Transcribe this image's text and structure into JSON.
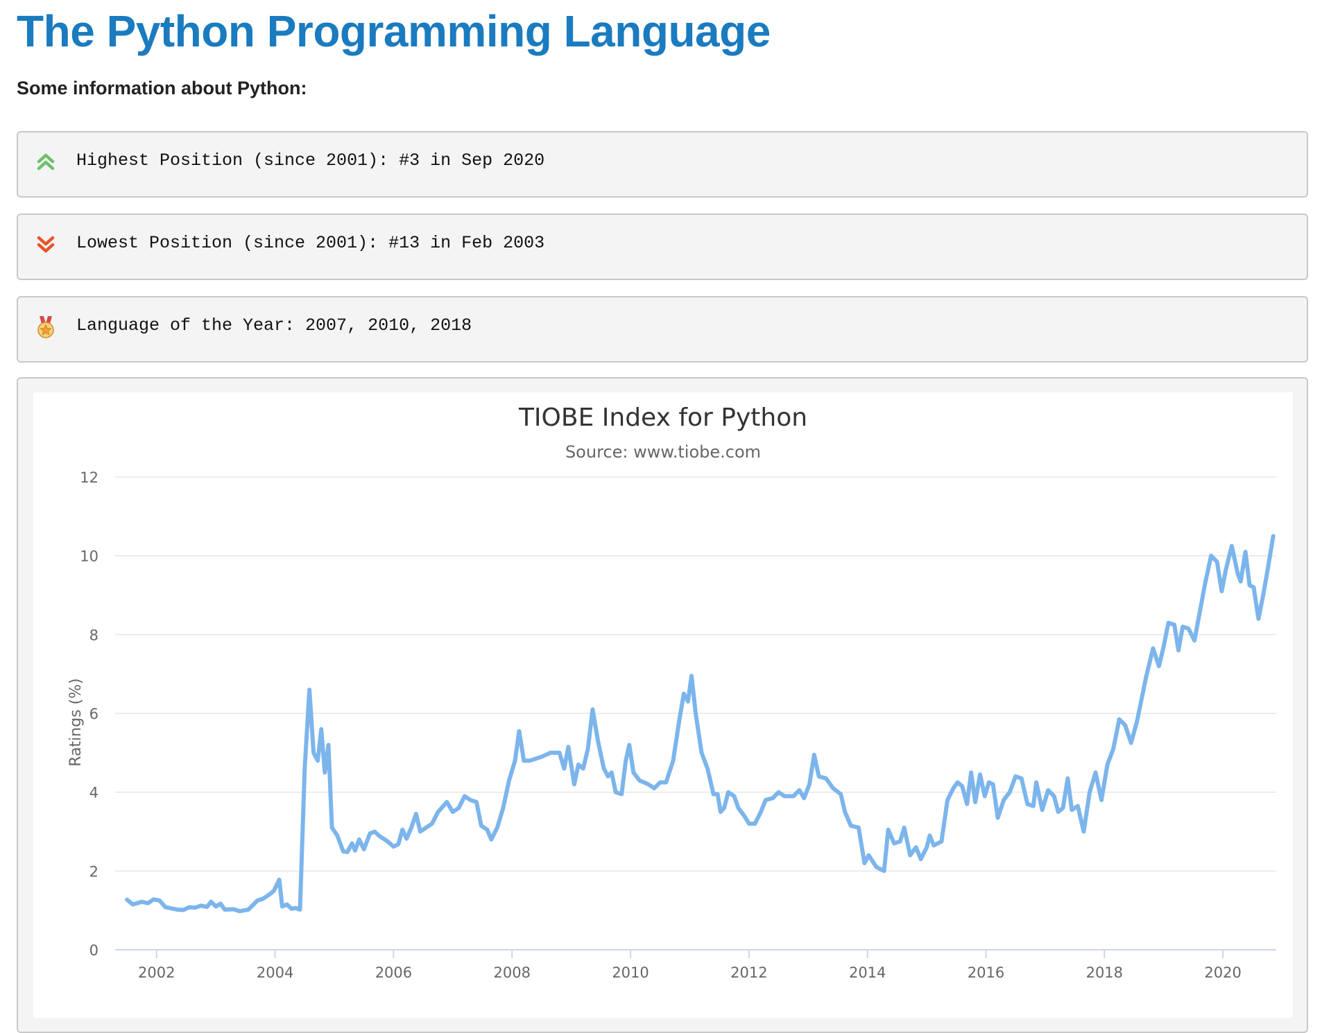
{
  "page": {
    "title": "The Python Programming Language",
    "subtitle": "Some information about Python:"
  },
  "info": [
    {
      "icon": "double-chevron-up-icon",
      "text": "Highest Position (since 2001): #3 in Sep 2020",
      "color": "#6cc06a"
    },
    {
      "icon": "double-chevron-down-icon",
      "text": "Lowest Position (since 2001): #13 in Feb 2003",
      "color": "#e8532a"
    },
    {
      "icon": "medal-star-icon",
      "text": "Language of the Year: 2007, 2010, 2018",
      "color": "#f0a030"
    }
  ],
  "colors": {
    "title": "#1a7bbf",
    "line": "#7cb5ec",
    "grid": "#e6e6e6"
  },
  "chart_data": {
    "type": "line",
    "title": "TIOBE Index for Python",
    "subtitle": "Source: www.tiobe.com",
    "xlabel": "",
    "ylabel": "Ratings (%)",
    "xlim": [
      2001.3,
      2020.9
    ],
    "ylim": [
      0,
      12
    ],
    "x_ticks": [
      "2002",
      "2004",
      "2006",
      "2008",
      "2010",
      "2012",
      "2014",
      "2016",
      "2018",
      "2020"
    ],
    "y_ticks": [
      "0",
      "2",
      "4",
      "6",
      "8",
      "10",
      "12"
    ],
    "grid": true,
    "legend": "none",
    "series": [
      {
        "name": "Python",
        "points": [
          [
            2001.5,
            1.27
          ],
          [
            2001.6,
            1.15
          ],
          [
            2001.75,
            1.22
          ],
          [
            2001.85,
            1.18
          ],
          [
            2001.95,
            1.28
          ],
          [
            2002.05,
            1.25
          ],
          [
            2002.15,
            1.08
          ],
          [
            2002.35,
            1.02
          ],
          [
            2002.45,
            1.01
          ],
          [
            2002.55,
            1.08
          ],
          [
            2002.65,
            1.07
          ],
          [
            2002.75,
            1.12
          ],
          [
            2002.85,
            1.09
          ],
          [
            2002.92,
            1.22
          ],
          [
            2003.0,
            1.1
          ],
          [
            2003.08,
            1.17
          ],
          [
            2003.15,
            1.02
          ],
          [
            2003.3,
            1.03
          ],
          [
            2003.4,
            0.98
          ],
          [
            2003.55,
            1.02
          ],
          [
            2003.7,
            1.25
          ],
          [
            2003.8,
            1.3
          ],
          [
            2003.9,
            1.4
          ],
          [
            2003.98,
            1.5
          ],
          [
            2004.07,
            1.78
          ],
          [
            2004.12,
            1.1
          ],
          [
            2004.2,
            1.15
          ],
          [
            2004.28,
            1.04
          ],
          [
            2004.35,
            1.06
          ],
          [
            2004.42,
            1.02
          ],
          [
            2004.5,
            4.6
          ],
          [
            2004.58,
            6.6
          ],
          [
            2004.65,
            5.0
          ],
          [
            2004.72,
            4.8
          ],
          [
            2004.78,
            5.6
          ],
          [
            2004.84,
            4.5
          ],
          [
            2004.9,
            5.2
          ],
          [
            2004.96,
            3.1
          ],
          [
            2005.05,
            2.9
          ],
          [
            2005.15,
            2.5
          ],
          [
            2005.22,
            2.48
          ],
          [
            2005.3,
            2.7
          ],
          [
            2005.35,
            2.52
          ],
          [
            2005.42,
            2.8
          ],
          [
            2005.5,
            2.55
          ],
          [
            2005.6,
            2.95
          ],
          [
            2005.68,
            3.0
          ],
          [
            2005.75,
            2.9
          ],
          [
            2005.9,
            2.75
          ],
          [
            2006.0,
            2.62
          ],
          [
            2006.08,
            2.68
          ],
          [
            2006.15,
            3.05
          ],
          [
            2006.22,
            2.82
          ],
          [
            2006.3,
            3.1
          ],
          [
            2006.38,
            3.45
          ],
          [
            2006.45,
            3.0
          ],
          [
            2006.55,
            3.1
          ],
          [
            2006.65,
            3.2
          ],
          [
            2006.75,
            3.5
          ],
          [
            2006.9,
            3.75
          ],
          [
            2007.0,
            3.5
          ],
          [
            2007.1,
            3.6
          ],
          [
            2007.2,
            3.9
          ],
          [
            2007.3,
            3.8
          ],
          [
            2007.4,
            3.75
          ],
          [
            2007.48,
            3.15
          ],
          [
            2007.58,
            3.05
          ],
          [
            2007.65,
            2.8
          ],
          [
            2007.75,
            3.1
          ],
          [
            2007.85,
            3.6
          ],
          [
            2007.95,
            4.3
          ],
          [
            2008.05,
            4.8
          ],
          [
            2008.12,
            5.55
          ],
          [
            2008.2,
            4.8
          ],
          [
            2008.3,
            4.8
          ],
          [
            2008.5,
            4.9
          ],
          [
            2008.65,
            5.0
          ],
          [
            2008.8,
            5.0
          ],
          [
            2008.88,
            4.6
          ],
          [
            2008.95,
            5.15
          ],
          [
            2009.05,
            4.2
          ],
          [
            2009.12,
            4.7
          ],
          [
            2009.2,
            4.6
          ],
          [
            2009.28,
            5.1
          ],
          [
            2009.36,
            6.1
          ],
          [
            2009.45,
            5.3
          ],
          [
            2009.55,
            4.6
          ],
          [
            2009.62,
            4.4
          ],
          [
            2009.68,
            4.5
          ],
          [
            2009.75,
            4.0
          ],
          [
            2009.85,
            3.95
          ],
          [
            2009.92,
            4.8
          ],
          [
            2009.98,
            5.2
          ],
          [
            2010.05,
            4.5
          ],
          [
            2010.15,
            4.3
          ],
          [
            2010.3,
            4.2
          ],
          [
            2010.4,
            4.1
          ],
          [
            2010.5,
            4.25
          ],
          [
            2010.6,
            4.25
          ],
          [
            2010.72,
            4.8
          ],
          [
            2010.82,
            5.8
          ],
          [
            2010.9,
            6.5
          ],
          [
            2010.97,
            6.3
          ],
          [
            2011.03,
            6.95
          ],
          [
            2011.1,
            6.0
          ],
          [
            2011.2,
            5.0
          ],
          [
            2011.3,
            4.6
          ],
          [
            2011.4,
            3.95
          ],
          [
            2011.47,
            3.95
          ],
          [
            2011.52,
            3.5
          ],
          [
            2011.58,
            3.6
          ],
          [
            2011.65,
            4.0
          ],
          [
            2011.75,
            3.9
          ],
          [
            2011.82,
            3.6
          ],
          [
            2011.92,
            3.4
          ],
          [
            2012.0,
            3.2
          ],
          [
            2012.1,
            3.2
          ],
          [
            2012.2,
            3.5
          ],
          [
            2012.28,
            3.8
          ],
          [
            2012.4,
            3.85
          ],
          [
            2012.5,
            4.0
          ],
          [
            2012.6,
            3.9
          ],
          [
            2012.75,
            3.9
          ],
          [
            2012.85,
            4.05
          ],
          [
            2012.93,
            3.85
          ],
          [
            2013.02,
            4.2
          ],
          [
            2013.1,
            4.95
          ],
          [
            2013.18,
            4.4
          ],
          [
            2013.3,
            4.35
          ],
          [
            2013.42,
            4.1
          ],
          [
            2013.55,
            3.95
          ],
          [
            2013.62,
            3.5
          ],
          [
            2013.72,
            3.15
          ],
          [
            2013.85,
            3.1
          ],
          [
            2013.95,
            2.2
          ],
          [
            2014.02,
            2.4
          ],
          [
            2014.15,
            2.1
          ],
          [
            2014.28,
            2.0
          ],
          [
            2014.35,
            3.05
          ],
          [
            2014.45,
            2.7
          ],
          [
            2014.55,
            2.75
          ],
          [
            2014.62,
            3.1
          ],
          [
            2014.72,
            2.4
          ],
          [
            2014.82,
            2.6
          ],
          [
            2014.9,
            2.3
          ],
          [
            2015.0,
            2.6
          ],
          [
            2015.05,
            2.9
          ],
          [
            2015.12,
            2.65
          ],
          [
            2015.25,
            2.75
          ],
          [
            2015.35,
            3.8
          ],
          [
            2015.45,
            4.1
          ],
          [
            2015.52,
            4.25
          ],
          [
            2015.6,
            4.15
          ],
          [
            2015.68,
            3.7
          ],
          [
            2015.75,
            4.5
          ],
          [
            2015.82,
            3.75
          ],
          [
            2015.9,
            4.45
          ],
          [
            2015.98,
            3.9
          ],
          [
            2016.05,
            4.25
          ],
          [
            2016.12,
            4.2
          ],
          [
            2016.2,
            3.35
          ],
          [
            2016.3,
            3.8
          ],
          [
            2016.4,
            4.0
          ],
          [
            2016.5,
            4.4
          ],
          [
            2016.6,
            4.35
          ],
          [
            2016.7,
            3.7
          ],
          [
            2016.8,
            3.65
          ],
          [
            2016.85,
            4.25
          ],
          [
            2016.95,
            3.55
          ],
          [
            2017.05,
            4.05
          ],
          [
            2017.15,
            3.9
          ],
          [
            2017.22,
            3.5
          ],
          [
            2017.3,
            3.6
          ],
          [
            2017.38,
            4.35
          ],
          [
            2017.45,
            3.55
          ],
          [
            2017.55,
            3.65
          ],
          [
            2017.65,
            3.0
          ],
          [
            2017.75,
            4.0
          ],
          [
            2017.85,
            4.5
          ],
          [
            2017.95,
            3.8
          ],
          [
            2018.05,
            4.7
          ],
          [
            2018.15,
            5.1
          ],
          [
            2018.25,
            5.85
          ],
          [
            2018.35,
            5.7
          ],
          [
            2018.45,
            5.25
          ],
          [
            2018.55,
            5.8
          ],
          [
            2018.7,
            6.9
          ],
          [
            2018.82,
            7.65
          ],
          [
            2018.92,
            7.2
          ],
          [
            2019.0,
            7.7
          ],
          [
            2019.08,
            8.3
          ],
          [
            2019.18,
            8.25
          ],
          [
            2019.25,
            7.6
          ],
          [
            2019.32,
            8.2
          ],
          [
            2019.42,
            8.15
          ],
          [
            2019.52,
            7.85
          ],
          [
            2019.6,
            8.5
          ],
          [
            2019.7,
            9.3
          ],
          [
            2019.8,
            10.0
          ],
          [
            2019.9,
            9.85
          ],
          [
            2019.98,
            9.1
          ],
          [
            2020.05,
            9.65
          ],
          [
            2020.15,
            10.25
          ],
          [
            2020.25,
            9.55
          ],
          [
            2020.3,
            9.35
          ],
          [
            2020.38,
            10.1
          ],
          [
            2020.45,
            9.25
          ],
          [
            2020.52,
            9.2
          ],
          [
            2020.6,
            8.4
          ],
          [
            2020.68,
            9.0
          ],
          [
            2020.75,
            9.6
          ],
          [
            2020.85,
            10.5
          ]
        ]
      }
    ]
  }
}
